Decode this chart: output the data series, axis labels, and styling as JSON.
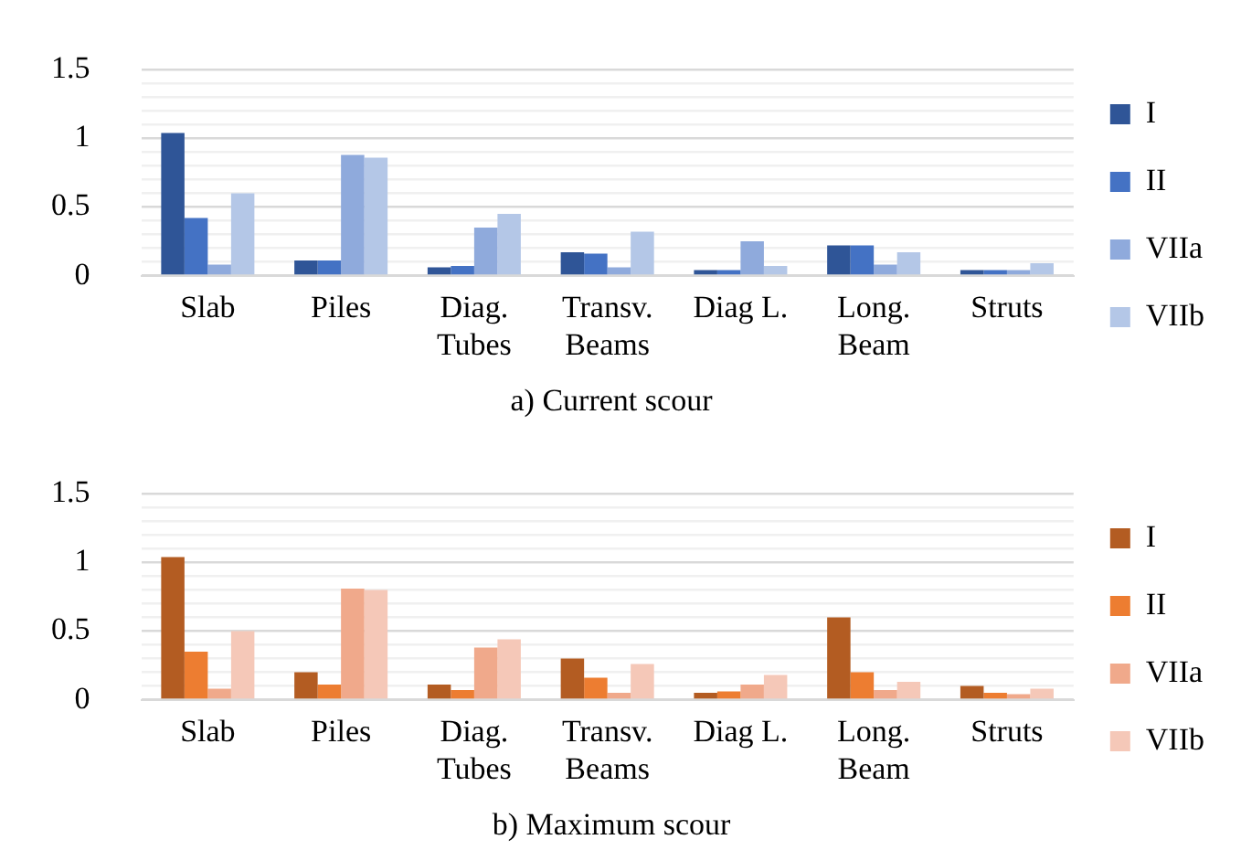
{
  "chart_data": [
    {
      "type": "bar",
      "title": "a) Current scour",
      "categories": [
        "Slab",
        "Piles",
        "Diag. Tubes",
        "Transv. Beams",
        "Diag L.",
        "Long. Beam",
        "Struts"
      ],
      "series": [
        {
          "name": "I",
          "color": "#2f5597",
          "values": [
            1.04,
            0.11,
            0.06,
            0.17,
            0.04,
            0.22,
            0.04
          ]
        },
        {
          "name": "II",
          "color": "#4472c4",
          "values": [
            0.42,
            0.11,
            0.07,
            0.16,
            0.04,
            0.22,
            0.04
          ]
        },
        {
          "name": "VIIa",
          "color": "#8faadc",
          "values": [
            0.08,
            0.88,
            0.35,
            0.06,
            0.25,
            0.08,
            0.04
          ]
        },
        {
          "name": "VIIb",
          "color": "#b4c7e7",
          "values": [
            0.6,
            0.86,
            0.45,
            0.32,
            0.07,
            0.17,
            0.09
          ]
        }
      ],
      "ylim": [
        0,
        1.5
      ],
      "yticks": [
        0,
        {
          "value": 0.1,
          "label": null
        },
        {
          "value": 0.2,
          "label": null
        },
        {
          "value": 0.3,
          "label": null
        },
        {
          "value": 0.4,
          "label": null
        },
        0.5,
        {
          "value": 0.6,
          "label": null
        },
        {
          "value": 0.7,
          "label": null
        },
        {
          "value": 0.8,
          "label": null
        },
        {
          "value": 0.9,
          "label": null
        },
        1,
        {
          "value": 1.1,
          "label": null
        },
        {
          "value": 1.2,
          "label": null
        },
        {
          "value": 1.3,
          "label": null
        },
        {
          "value": 1.4,
          "label": null
        },
        1.5
      ],
      "grid": "y",
      "legend": "right"
    },
    {
      "type": "bar",
      "title": "b) Maximum scour",
      "categories": [
        "Slab",
        "Piles",
        "Diag. Tubes",
        "Transv. Beams",
        "Diag L.",
        "Long. Beam",
        "Struts"
      ],
      "series": [
        {
          "name": "I",
          "color": "#b35c22",
          "values": [
            1.04,
            0.2,
            0.11,
            0.3,
            0.05,
            0.6,
            0.1
          ]
        },
        {
          "name": "II",
          "color": "#ed7d31",
          "values": [
            0.35,
            0.11,
            0.07,
            0.16,
            0.06,
            0.2,
            0.05
          ]
        },
        {
          "name": "VIIa",
          "color": "#f0a98b",
          "values": [
            0.08,
            0.81,
            0.38,
            0.05,
            0.11,
            0.07,
            0.04
          ]
        },
        {
          "name": "VIIb",
          "color": "#f5c8b8",
          "values": [
            0.5,
            0.8,
            0.44,
            0.26,
            0.18,
            0.13,
            0.08
          ]
        }
      ],
      "ylim": [
        0,
        1.5
      ],
      "yticks": [
        0,
        {
          "value": 0.1,
          "label": null
        },
        {
          "value": 0.2,
          "label": null
        },
        {
          "value": 0.3,
          "label": null
        },
        {
          "value": 0.4,
          "label": null
        },
        0.5,
        {
          "value": 0.6,
          "label": null
        },
        {
          "value": 0.7,
          "label": null
        },
        {
          "value": 0.8,
          "label": null
        },
        {
          "value": 0.9,
          "label": null
        },
        1,
        {
          "value": 1.1,
          "label": null
        },
        {
          "value": 1.2,
          "label": null
        },
        {
          "value": 1.3,
          "label": null
        },
        {
          "value": 1.4,
          "label": null
        },
        1.5
      ],
      "grid": "y",
      "legend": "right"
    }
  ]
}
